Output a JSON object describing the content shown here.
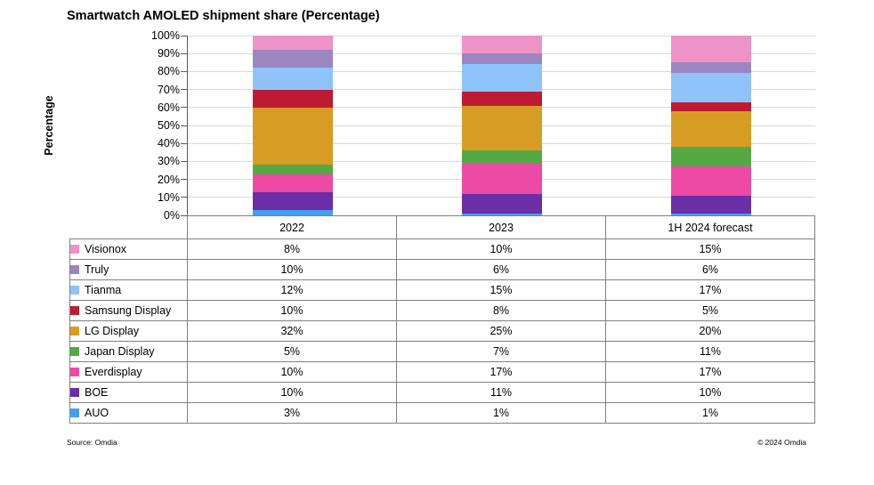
{
  "title": "Smartwatch AMOLED shipment share (Percentage)",
  "y_axis_label": "Percentage",
  "footer": {
    "source": "Source: Omdia",
    "copyright": "© 2024 Omdia"
  },
  "style_colors": {
    "gridline": "#D9D9D9",
    "axis": "#595959",
    "table_border": "#808080"
  },
  "chart_data": {
    "type": "bar",
    "stacked": true,
    "title": "Smartwatch AMOLED shipment share (Percentage)",
    "xlabel": "",
    "ylabel": "Percentage",
    "ylim": [
      0,
      100
    ],
    "yticks": [
      "0%",
      "10%",
      "20%",
      "30%",
      "40%",
      "50%",
      "60%",
      "70%",
      "80%",
      "90%",
      "100%"
    ],
    "grid": true,
    "legend_position": "table-left-column",
    "categories": [
      "2022",
      "2023",
      "1H 2024 forecast"
    ],
    "stack_order_bottom_to_top": [
      "AUO",
      "BOE",
      "Everdisplay",
      "Japan Display",
      "LG Display",
      "Samsung Display",
      "Tianma",
      "Truly",
      "Visionox"
    ],
    "series": [
      {
        "name": "Visionox",
        "color": "#EE93C5",
        "values": [
          8,
          10,
          15
        ],
        "labels": [
          "8%",
          "10%",
          "15%"
        ]
      },
      {
        "name": "Truly",
        "color": "#9C86C1",
        "values": [
          10,
          6,
          6
        ],
        "labels": [
          "10%",
          "6%",
          "6%"
        ]
      },
      {
        "name": "Tianma",
        "color": "#8EC3F9",
        "values": [
          12,
          15,
          17
        ],
        "labels": [
          "12%",
          "15%",
          "17%"
        ]
      },
      {
        "name": "Samsung Display",
        "color": "#BE1B32",
        "values": [
          10,
          8,
          5
        ],
        "labels": [
          "10%",
          "8%",
          "5%"
        ]
      },
      {
        "name": "LG Display",
        "color": "#D79C24",
        "values": [
          32,
          25,
          20
        ],
        "labels": [
          "32%",
          "25%",
          "20%"
        ]
      },
      {
        "name": "Japan Display",
        "color": "#55A945",
        "values": [
          5,
          7,
          11
        ],
        "labels": [
          "5%",
          "7%",
          "11%"
        ]
      },
      {
        "name": "Everdisplay",
        "color": "#EC4AA5",
        "values": [
          10,
          17,
          17
        ],
        "labels": [
          "10%",
          "17%",
          "17%"
        ]
      },
      {
        "name": "BOE",
        "color": "#6A2EA6",
        "values": [
          10,
          11,
          10
        ],
        "labels": [
          "10%",
          "11%",
          "10%"
        ]
      },
      {
        "name": "AUO",
        "color": "#41A0EE",
        "values": [
          3,
          1,
          1
        ],
        "labels": [
          "3%",
          "1%",
          "1%"
        ]
      }
    ]
  }
}
